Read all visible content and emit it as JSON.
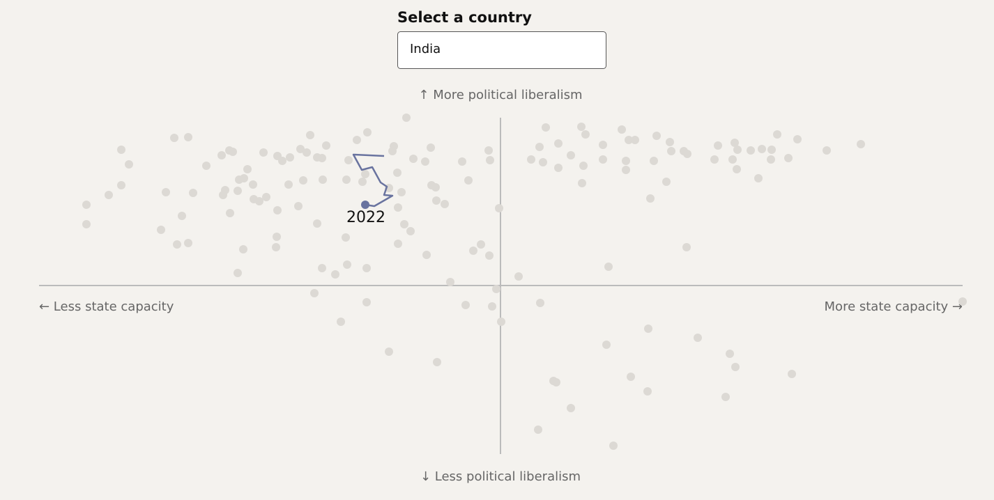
{
  "selector": {
    "label": "Select a country",
    "value": "India"
  },
  "chart_data": {
    "type": "scatter",
    "y_label_top": "↑ More political liberalism",
    "y_label_bottom": "↓ Less political liberalism",
    "x_label_left": "← Less state capacity",
    "x_label_right": "More state capacity →",
    "xlim": [
      -662,
      663
    ],
    "ylim": [
      -240,
      241
    ],
    "color": "#dcd9d4",
    "x": [
      -135,
      -468,
      -448,
      -273,
      -206,
      -191,
      -250,
      -544,
      -533,
      -389,
      -384,
      -400,
      -422,
      -340,
      -320,
      -313,
      -302,
      -287,
      -278,
      -263,
      -256,
      -218,
      -153,
      -155,
      -125,
      -108,
      -100,
      -55,
      -17,
      -15,
      -363,
      -368,
      -375,
      -355,
      -395,
      -377,
      -398,
      -480,
      -441,
      -544,
      -562,
      -594,
      -594,
      -457,
      -487,
      -464,
      -448,
      -388,
      -354,
      -346,
      -336,
      -320,
      -304,
      -283,
      -290,
      -255,
      -221,
      -198,
      -194,
      -148,
      -160,
      -142,
      -147,
      -99,
      -93,
      -92,
      -80,
      -46,
      -2,
      -263,
      -222,
      -138,
      -129,
      -147,
      -106,
      -39,
      -28,
      -16,
      -321,
      -322,
      -369,
      -377,
      -256,
      -237,
      -220,
      -192,
      -72,
      -267,
      -192,
      -229,
      -50,
      -12,
      -6,
      1,
      26,
      -160,
      -91,
      65,
      116,
      122,
      174,
      184,
      193,
      224,
      243,
      245,
      263,
      268,
      312,
      336,
      340,
      359,
      375,
      389,
      397,
      426,
      468,
      517,
      56,
      83,
      147,
      44,
      61,
      83,
      101,
      119,
      147,
      180,
      180,
      220,
      307,
      333,
      339,
      388,
      413,
      370,
      117,
      238,
      215,
      267,
      155,
      57,
      663,
      212,
      283,
      152,
      329,
      337,
      418,
      187,
      76,
      80,
      211,
      323,
      101,
      54,
      162
    ],
    "y": [
      241,
      212,
      213,
      216,
      209,
      220,
      201,
      195,
      174,
      194,
      192,
      187,
      172,
      191,
      186,
      179,
      184,
      196,
      191,
      184,
      183,
      180,
      200,
      193,
      182,
      178,
      198,
      178,
      194,
      180,
      167,
      154,
      152,
      145,
      137,
      136,
      130,
      134,
      133,
      144,
      130,
      116,
      88,
      100,
      80,
      59,
      61,
      104,
      124,
      121,
      127,
      108,
      145,
      151,
      114,
      152,
      152,
      149,
      160,
      162,
      140,
      134,
      112,
      144,
      141,
      122,
      117,
      151,
      111,
      89,
      69,
      88,
      78,
      60,
      44,
      50,
      59,
      43,
      70,
      55,
      52,
      18,
      25,
      16,
      30,
      25,
      5,
      -11,
      -24,
      -52,
      -28,
      -30,
      -5,
      -52,
      13,
      -95,
      -110,
      227,
      228,
      217,
      224,
      209,
      209,
      215,
      206,
      193,
      193,
      189,
      201,
      205,
      195,
      194,
      196,
      195,
      217,
      210,
      194,
      203,
      199,
      204,
      202,
      181,
      177,
      169,
      187,
      172,
      181,
      179,
      166,
      179,
      181,
      181,
      167,
      181,
      183,
      154,
      147,
      149,
      125,
      55,
      27,
      -25,
      -23,
      -62,
      -75,
      -85,
      -98,
      -117,
      -127,
      -131,
      -137,
      -139,
      -152,
      -160,
      -176,
      -207,
      -230
    ],
    "highlight": {
      "color": "#69739f",
      "x": [
        -167,
        -211,
        -199,
        -184,
        -172,
        -163,
        -167,
        -155,
        -181,
        -194
      ],
      "y": [
        186,
        188,
        166,
        170,
        148,
        142,
        130,
        129,
        114,
        116
      ],
      "end_label": "2022"
    }
  }
}
